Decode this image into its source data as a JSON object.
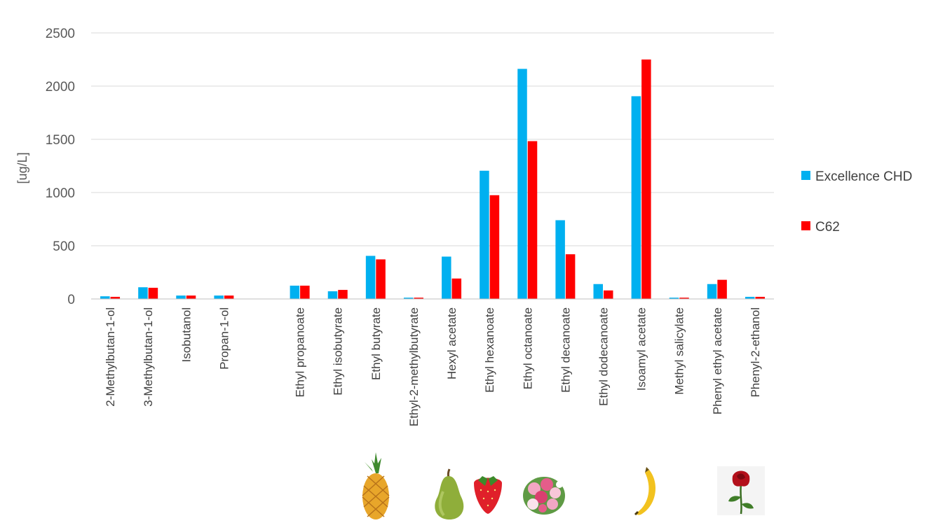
{
  "chart_data": {
    "type": "bar",
    "title": "",
    "xlabel": "",
    "ylabel": "[ug/L]",
    "ylim": [
      0,
      2500
    ],
    "yticks": [
      0,
      500,
      1000,
      1500,
      2000,
      2500
    ],
    "grid": true,
    "legend_position": "right",
    "categories": [
      "2-Methylbutan-1-ol",
      "3-Methylbutan-1-ol",
      "Isobutanol",
      "Propan-1-ol",
      "",
      "Ethyl propanoate",
      "Ethyl isobutyrate",
      "Ethyl butyrate",
      "Ethyl-2-methylbutyrate",
      "Hexyl acetate",
      "Ethyl hexanoate",
      "Ethyl octanoate",
      "Ethyl decanoate",
      "Ethyl dodecanoate",
      "Isoamyl acetate",
      "Methyl salicylate",
      "Phenyl ethyl acetate",
      "Phenyl-2-ethanol"
    ],
    "series": [
      {
        "name": "Excellence CHD",
        "color": "#00b0f0",
        "values": [
          25,
          110,
          32,
          32,
          null,
          125,
          72,
          405,
          12,
          398,
          1205,
          2162,
          740,
          140,
          1905,
          12,
          140,
          20
        ]
      },
      {
        "name": "C62",
        "color": "#ff0000",
        "values": [
          20,
          105,
          32,
          32,
          null,
          125,
          85,
          372,
          12,
          192,
          975,
          1483,
          420,
          80,
          2250,
          12,
          180,
          20
        ]
      }
    ],
    "aroma_icons": [
      {
        "category": "Ethyl butyrate",
        "icon": "pineapple-icon"
      },
      {
        "category": "Hexyl acetate",
        "icon": "pear-icon"
      },
      {
        "category": "Ethyl hexanoate",
        "icon": "strawberry-icon"
      },
      {
        "category": "Ethyl octanoate",
        "icon": "flower-bouquet-icon"
      },
      {
        "category": "Isoamyl acetate",
        "icon": "banana-icon"
      },
      {
        "category": "Phenyl-2-ethanol",
        "icon": "rose-icon"
      }
    ]
  }
}
